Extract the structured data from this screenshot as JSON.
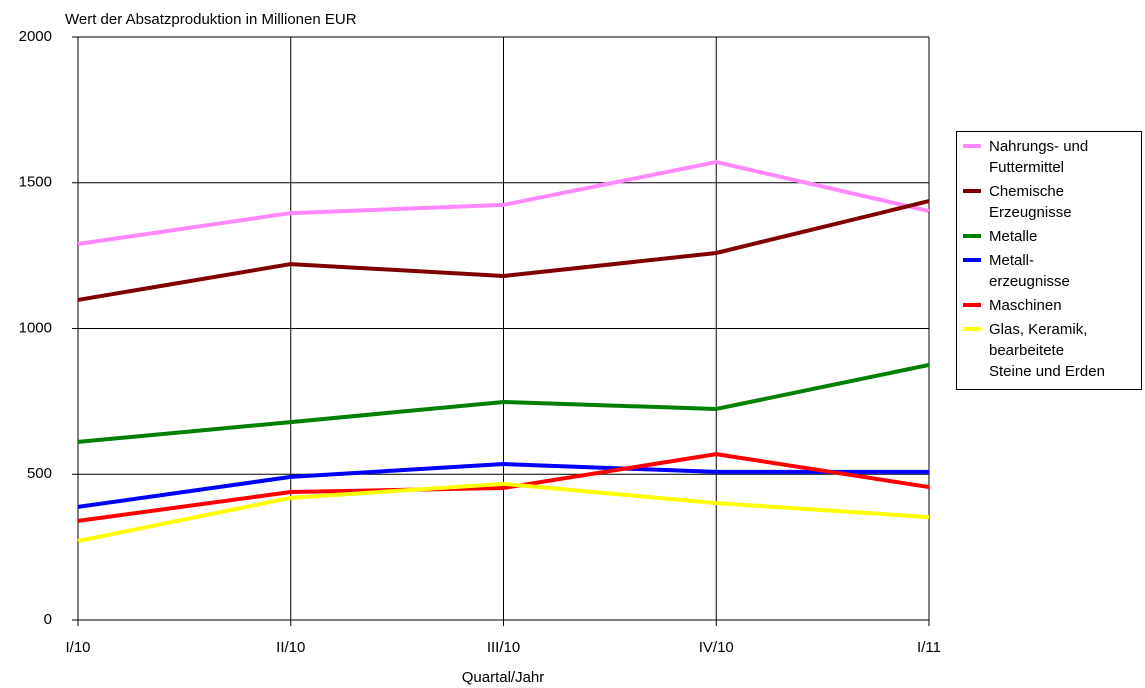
{
  "chart_data": {
    "type": "line",
    "title": "Wert der Absatzproduktion in Millionen EUR",
    "x_label": "Quartal/Jahr",
    "categories": [
      "I/10",
      "II/10",
      "III/10",
      "IV/10",
      "I/11"
    ],
    "series": [
      {
        "name": "Nahrungs- und\nFuttermittel",
        "color": "#ff88ff",
        "values": [
          1290,
          1396,
          1424,
          1571,
          1403
        ]
      },
      {
        "name": "Chemische\nErzeugnisse",
        "color": "#800000",
        "values": [
          1098,
          1221,
          1180,
          1259,
          1437
        ]
      },
      {
        "name": "Metalle",
        "color": "#008000",
        "values": [
          611,
          679,
          748,
          724,
          875
        ]
      },
      {
        "name": "Metall-\nerzeugnisse",
        "color": "#0000ff",
        "values": [
          388,
          491,
          535,
          508,
          508
        ]
      },
      {
        "name": "Maschinen",
        "color": "#ff0000",
        "values": [
          340,
          439,
          453,
          569,
          456
        ]
      },
      {
        "name": "Glas, Keramik,\nbearbeitete\nSteine und Erden",
        "color": "#ffff00",
        "values": [
          271,
          419,
          467,
          401,
          353
        ]
      }
    ],
    "ylim": [
      0,
      2000
    ],
    "yticks": [
      0,
      500,
      1000,
      1500,
      2000
    ],
    "grid": true,
    "legend": "right"
  }
}
